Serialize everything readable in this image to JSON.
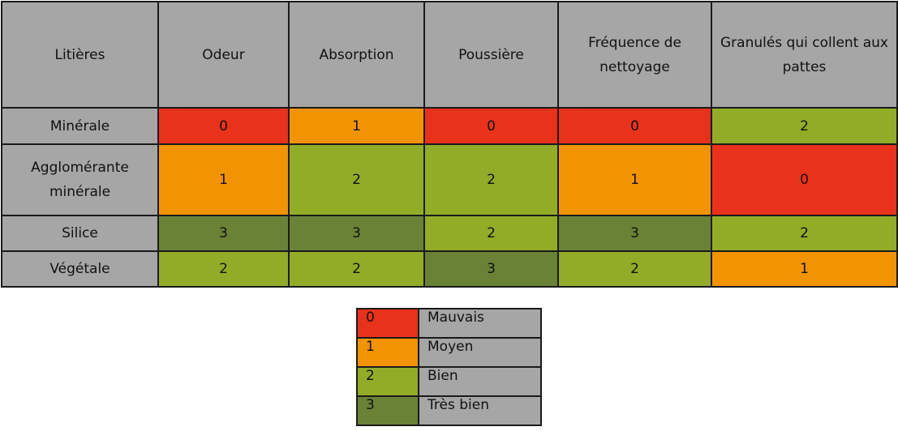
{
  "colors": {
    "0": "#e8321b",
    "1": "#f29300",
    "2": "#93ac28",
    "3": "#6a8236",
    "header": "#a6a6a6",
    "border": "#1a1a1a"
  },
  "chart_data": {
    "type": "table",
    "columns": [
      "Litières",
      "Odeur",
      "Absorption",
      "Poussière",
      "Fréquence de nettoyage",
      "Granulés qui collent aux pattes"
    ],
    "rows": [
      {
        "label": "Minérale",
        "values": [
          0,
          1,
          0,
          0,
          2
        ]
      },
      {
        "label": "Agglomérante minérale",
        "values": [
          1,
          2,
          2,
          1,
          0
        ]
      },
      {
        "label": "Silice",
        "values": [
          3,
          3,
          2,
          3,
          2
        ]
      },
      {
        "label": "Végétale",
        "values": [
          2,
          2,
          3,
          2,
          1
        ]
      }
    ],
    "legend": [
      {
        "value": "0",
        "label": "Mauvais"
      },
      {
        "value": "1",
        "label": "Moyen"
      },
      {
        "value": "2",
        "label": "Bien"
      },
      {
        "value": "3",
        "label": "Très bien"
      }
    ]
  }
}
